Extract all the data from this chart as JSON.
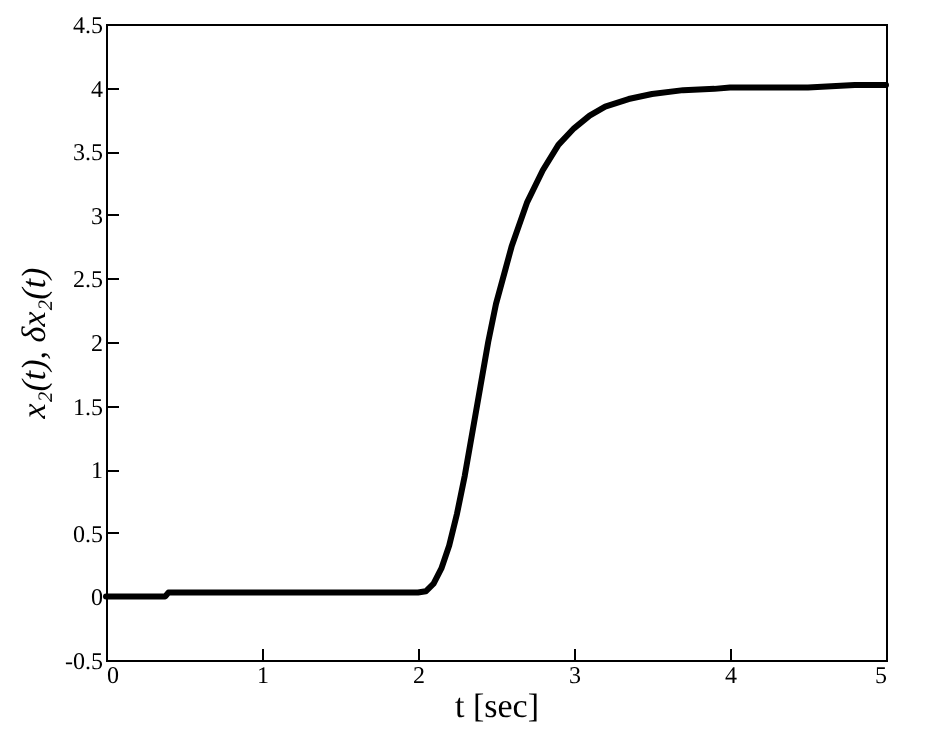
{
  "chart_data": {
    "type": "line",
    "xlabel": "t [sec]",
    "ylabel": "x₂(t), δx₂(t)",
    "xlim": [
      0,
      5
    ],
    "xticks": [
      0,
      1,
      2,
      3,
      4,
      5
    ],
    "ylim": [
      -0.5,
      4.5
    ],
    "yticks": [
      -0.5,
      0,
      0.5,
      1,
      1.5,
      2,
      2.5,
      3,
      3.5,
      4,
      4.5
    ],
    "grid": false,
    "marker": "none",
    "line_style": "solid",
    "series": [
      {
        "color": "#000000",
        "x": [
          0,
          0.38,
          0.4,
          1,
          2,
          2.05,
          2.1,
          2.15,
          2.2,
          2.25,
          2.3,
          2.35,
          2.4,
          2.45,
          2.5,
          2.6,
          2.7,
          2.8,
          2.9,
          3,
          3.1,
          3.2,
          3.35,
          3.5,
          3.7,
          3.9,
          4,
          4.5,
          4.8,
          5
        ],
        "values": [
          0,
          0,
          0.03,
          0.03,
          0.03,
          0.04,
          0.1,
          0.22,
          0.4,
          0.65,
          0.95,
          1.3,
          1.65,
          2,
          2.3,
          2.75,
          3.1,
          3.35,
          3.55,
          3.68,
          3.78,
          3.85,
          3.91,
          3.95,
          3.98,
          3.99,
          4,
          4,
          4.02,
          4.02
        ]
      }
    ]
  }
}
